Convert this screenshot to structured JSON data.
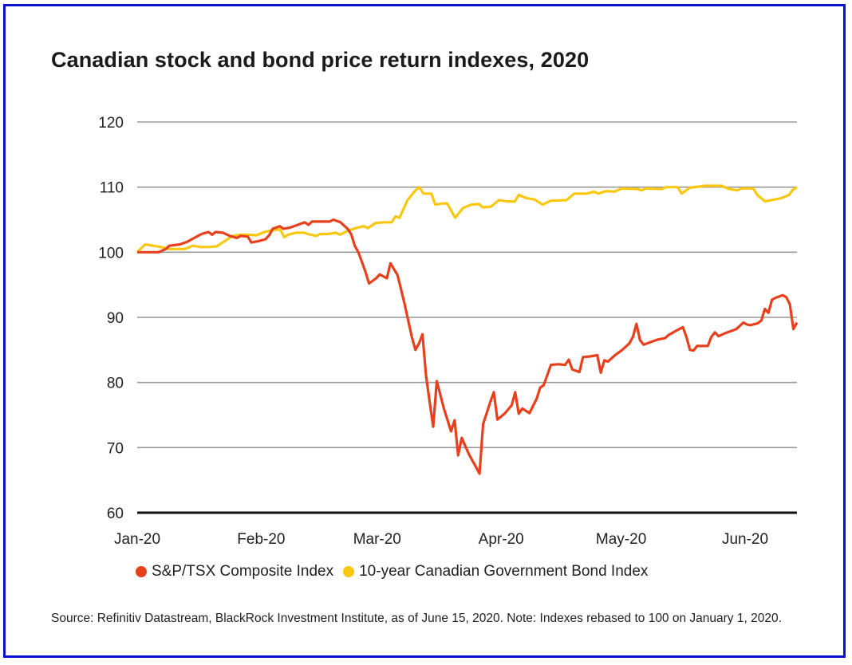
{
  "chart_data": {
    "type": "line",
    "title": "Canadian stock and bond price return indexes, 2020",
    "xlabel": "",
    "ylabel": "",
    "ylim": [
      60,
      120
    ],
    "yticks": [
      60,
      70,
      80,
      90,
      100,
      110,
      120
    ],
    "xlim_days": [
      0,
      165
    ],
    "xticks": [
      {
        "label": "Jan-20",
        "day": 0
      },
      {
        "label": "Feb-20",
        "day": 31
      },
      {
        "label": "Mar-20",
        "day": 60
      },
      {
        "label": "Apr-20",
        "day": 91
      },
      {
        "label": "May-20",
        "day": 121
      },
      {
        "label": "Jun-20",
        "day": 152
      }
    ],
    "grid": true,
    "legend_position": "bottom",
    "series": [
      {
        "name": "S&P/TSX Composite Index",
        "color": "#e8401c",
        "points": [
          [
            0,
            100
          ],
          [
            3,
            100
          ],
          [
            6,
            100
          ],
          [
            8,
            100.5
          ],
          [
            9,
            101
          ],
          [
            12,
            101.2
          ],
          [
            14,
            101.6
          ],
          [
            16,
            102.2
          ],
          [
            18,
            102.8
          ],
          [
            20,
            103.1
          ],
          [
            21,
            102.7
          ],
          [
            22,
            103.1
          ],
          [
            24,
            103
          ],
          [
            26,
            102.5
          ],
          [
            28,
            102.2
          ],
          [
            29,
            102.5
          ],
          [
            31,
            102.4
          ],
          [
            32,
            101.5
          ],
          [
            34,
            101.7
          ],
          [
            36,
            102
          ],
          [
            37,
            102.6
          ],
          [
            38,
            103.6
          ],
          [
            40,
            104
          ],
          [
            41,
            103.6
          ],
          [
            43,
            103.8
          ],
          [
            45,
            104.2
          ],
          [
            47,
            104.6
          ],
          [
            48,
            104.2
          ],
          [
            49,
            104.7
          ],
          [
            52,
            104.7
          ],
          [
            54,
            104.7
          ],
          [
            55,
            105
          ],
          [
            57,
            104.6
          ],
          [
            59,
            103.6
          ],
          [
            60,
            102.8
          ],
          [
            61,
            101
          ],
          [
            62,
            100
          ],
          [
            64,
            97
          ],
          [
            65,
            95.2
          ],
          [
            67,
            96
          ],
          [
            68,
            96.6
          ],
          [
            70,
            96
          ],
          [
            71,
            98.3
          ],
          [
            73,
            96.5
          ],
          [
            75,
            92
          ],
          [
            77,
            87
          ],
          [
            78,
            85
          ],
          [
            79,
            86
          ],
          [
            80,
            87.4
          ],
          [
            81,
            81
          ],
          [
            82,
            77
          ],
          [
            83,
            73.2
          ],
          [
            84,
            80.2
          ],
          [
            86,
            76
          ],
          [
            88,
            72.5
          ],
          [
            89,
            74.2
          ],
          [
            90,
            68.8
          ],
          [
            91,
            71.5
          ],
          [
            93,
            69
          ],
          [
            95,
            67
          ],
          [
            96,
            66
          ],
          [
            97,
            73.6
          ],
          [
            99,
            77
          ],
          [
            100,
            78.5
          ],
          [
            101,
            74.3
          ],
          [
            103,
            75.2
          ],
          [
            105,
            76.5
          ],
          [
            106,
            78.5
          ],
          [
            107,
            75.2
          ],
          [
            108,
            76
          ],
          [
            110,
            75.3
          ],
          [
            112,
            77.5
          ],
          [
            113,
            79.2
          ],
          [
            114,
            79.6
          ],
          [
            116,
            82.7
          ],
          [
            118,
            82.8
          ],
          [
            120,
            82.7
          ],
          [
            121,
            83.5
          ],
          [
            122,
            82
          ],
          [
            124,
            81.6
          ],
          [
            125,
            83.9
          ],
          [
            127,
            84
          ],
          [
            129,
            84.2
          ],
          [
            130,
            81.5
          ],
          [
            131,
            83.4
          ],
          [
            132,
            83.2
          ],
          [
            134,
            84.2
          ],
          [
            136,
            85
          ],
          [
            138,
            86
          ],
          [
            139,
            87
          ],
          [
            140,
            89
          ],
          [
            141,
            86.5
          ],
          [
            142,
            85.8
          ],
          [
            144,
            86.2
          ],
          [
            146,
            86.6
          ],
          [
            148,
            86.8
          ],
          [
            149,
            87.3
          ],
          [
            151,
            87.9
          ],
          [
            153,
            88.5
          ],
          [
            154,
            87
          ],
          [
            155,
            85
          ],
          [
            156,
            84.9
          ],
          [
            157,
            85.6
          ],
          [
            160,
            85.6
          ],
          [
            161,
            87
          ],
          [
            162,
            87.7
          ],
          [
            163,
            87.1
          ],
          [
            165,
            87.6
          ],
          [
            168,
            88.2
          ],
          [
            170,
            89.2
          ],
          [
            171,
            88.9
          ],
          [
            172,
            88.8
          ],
          [
            174,
            89.1
          ],
          [
            175,
            89.5
          ],
          [
            176,
            91.3
          ],
          [
            177,
            90.7
          ],
          [
            178,
            92.7
          ],
          [
            179,
            93
          ],
          [
            181,
            93.4
          ],
          [
            182,
            93.1
          ],
          [
            183,
            92
          ],
          [
            184,
            88.2
          ],
          [
            185,
            89.2
          ]
        ]
      },
      {
        "name": "10-year Canadian Government Bond Index",
        "color": "#f9c80e",
        "points": [
          [
            0,
            100
          ],
          [
            2,
            101.2
          ],
          [
            4,
            101
          ],
          [
            6,
            100.8
          ],
          [
            8,
            100.5
          ],
          [
            10,
            100.5
          ],
          [
            12,
            100.5
          ],
          [
            14,
            101
          ],
          [
            16,
            100.8
          ],
          [
            18,
            100.8
          ],
          [
            20,
            100.9
          ],
          [
            22,
            101.7
          ],
          [
            24,
            102.5
          ],
          [
            26,
            102.7
          ],
          [
            28,
            102.7
          ],
          [
            30,
            102.6
          ],
          [
            32,
            103.1
          ],
          [
            34,
            103.4
          ],
          [
            36,
            103.5
          ],
          [
            37,
            102.3
          ],
          [
            38,
            102.7
          ],
          [
            40,
            103
          ],
          [
            42,
            103
          ],
          [
            43,
            102.8
          ],
          [
            45,
            102.5
          ],
          [
            46,
            102.8
          ],
          [
            48,
            102.8
          ],
          [
            50,
            103
          ],
          [
            51,
            102.7
          ],
          [
            53,
            103.3
          ],
          [
            55,
            103.7
          ],
          [
            57,
            104
          ],
          [
            58,
            103.7
          ],
          [
            60,
            104.5
          ],
          [
            62,
            104.6
          ],
          [
            64,
            104.6
          ],
          [
            65,
            105.5
          ],
          [
            66,
            105.3
          ],
          [
            68,
            108
          ],
          [
            70,
            109.5
          ],
          [
            71,
            110
          ],
          [
            72,
            109
          ],
          [
            74,
            109
          ],
          [
            75,
            107.3
          ],
          [
            77,
            107.5
          ],
          [
            78,
            107.5
          ],
          [
            80,
            105.3
          ],
          [
            82,
            106.8
          ],
          [
            84,
            107.3
          ],
          [
            86,
            107.4
          ],
          [
            87,
            106.9
          ],
          [
            89,
            107
          ],
          [
            91,
            108
          ],
          [
            93,
            107.8
          ],
          [
            95,
            107.8
          ],
          [
            96,
            108.8
          ],
          [
            98,
            108.3
          ],
          [
            100,
            108.1
          ],
          [
            102,
            107.3
          ],
          [
            104,
            107.9
          ],
          [
            108,
            108
          ],
          [
            110,
            109
          ],
          [
            113,
            109
          ],
          [
            115,
            109.3
          ],
          [
            116,
            109
          ],
          [
            118,
            109.4
          ],
          [
            120,
            109.3
          ],
          [
            122,
            109.8
          ],
          [
            126,
            109.7
          ],
          [
            127,
            109.5
          ],
          [
            128,
            109.8
          ],
          [
            132,
            109.7
          ],
          [
            133,
            110
          ],
          [
            136,
            110
          ],
          [
            137,
            109
          ],
          [
            139,
            109.9
          ],
          [
            143,
            110.2
          ],
          [
            147,
            110.2
          ],
          [
            149,
            109.7
          ],
          [
            151,
            109.5
          ],
          [
            152,
            109.8
          ],
          [
            155,
            109.8
          ],
          [
            156,
            108.8
          ],
          [
            158,
            107.8
          ],
          [
            162,
            108.3
          ],
          [
            164,
            108.8
          ],
          [
            165,
            109.6
          ],
          [
            166,
            110
          ]
        ]
      }
    ]
  },
  "legend": {
    "items": [
      {
        "label": "S&P/TSX Composite Index",
        "color": "#e8401c"
      },
      {
        "label": "10-year Canadian Government Bond Index",
        "color": "#f9c80e"
      }
    ]
  },
  "source_note": "Source: Refinitiv Datastream, BlackRock Investment Institute, as of June 15, 2020. Note: Indexes rebased to 100 on January 1, 2020."
}
